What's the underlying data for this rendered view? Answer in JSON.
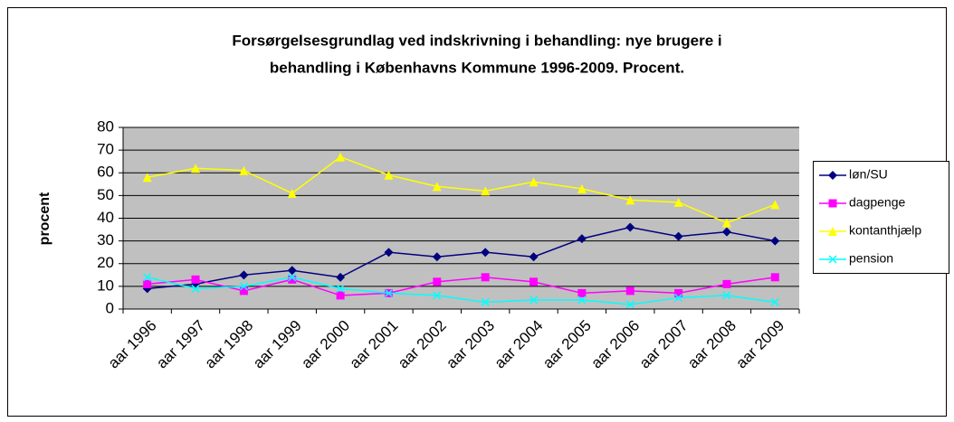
{
  "chart_data": {
    "type": "line",
    "title": [
      "Forsørgelsesgrundlag ved indskrivning i behandling: nye brugere i",
      "behandling i Københavns Kommune 1996-2009. Procent."
    ],
    "y_label": "procent",
    "categories": [
      "aar 1996",
      "aar 1997",
      "aar 1998",
      "aar 1999",
      "aar 2000",
      "aar 2001",
      "aar 2002",
      "aar 2003",
      "aar 2004",
      "aar 2005",
      "aar 2006",
      "aar 2007",
      "aar 2008",
      "aar 2009"
    ],
    "series": [
      {
        "name": "løn/SU",
        "color": "#000080",
        "marker": "diamond",
        "values": [
          9,
          11,
          15,
          17,
          14,
          25,
          23,
          25,
          23,
          31,
          36,
          32,
          34,
          30
        ]
      },
      {
        "name": "dagpenge",
        "color": "#ff00ff",
        "marker": "square",
        "values": [
          11,
          13,
          8,
          13,
          6,
          7,
          12,
          14,
          12,
          7,
          8,
          7,
          11,
          14
        ]
      },
      {
        "name": "kontanthjælp",
        "color": "#ffff00",
        "marker": "triangle",
        "values": [
          58,
          62,
          61,
          51,
          67,
          59,
          54,
          52,
          56,
          53,
          48,
          47,
          38,
          46
        ]
      },
      {
        "name": "pension",
        "color": "#00ffff",
        "marker": "x",
        "values": [
          14,
          9,
          10,
          14,
          9,
          7,
          6,
          3,
          4,
          4,
          2,
          5,
          6,
          3
        ]
      }
    ],
    "ylim": [
      0,
      80
    ],
    "yticks": [
      0,
      10,
      20,
      30,
      40,
      50,
      60,
      70,
      80
    ],
    "grid": true,
    "legend": "right"
  }
}
